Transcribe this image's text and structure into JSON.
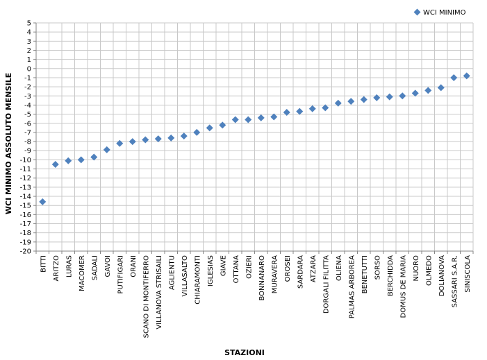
{
  "chart_data": {
    "type": "scatter",
    "xlabel": "STAZIONI",
    "ylabel": "WCI MINIMO ASSOLUTO MENSILE",
    "ylim": [
      -20,
      5
    ],
    "ytick_step": 1,
    "grid": true,
    "legend_position": "top-right",
    "marker_color": "#4F81BD",
    "series": [
      {
        "name": "WCI MINIMO",
        "points": [
          {
            "x": "BITTI",
            "y": -14.6
          },
          {
            "x": "ARITZO",
            "y": -10.5
          },
          {
            "x": "LURAS",
            "y": -10.1
          },
          {
            "x": "MACOMER",
            "y": -10.0
          },
          {
            "x": "SADALI",
            "y": -9.7
          },
          {
            "x": "GAVOI",
            "y": -8.9
          },
          {
            "x": "PUTIFIGARI",
            "y": -8.2
          },
          {
            "x": "ORANI",
            "y": -8.0
          },
          {
            "x": "SCANO DI MONTIFERRO",
            "y": -7.8
          },
          {
            "x": "VILLANOVA STRISAILI",
            "y": -7.7
          },
          {
            "x": "AGLIENTU",
            "y": -7.6
          },
          {
            "x": "VILLASALTO",
            "y": -7.4
          },
          {
            "x": "CHIARAMONTI",
            "y": -7.0
          },
          {
            "x": "IGLESIAS",
            "y": -6.5
          },
          {
            "x": "GIAVE",
            "y": -6.2
          },
          {
            "x": "OTTANA",
            "y": -5.6
          },
          {
            "x": "OZIERI",
            "y": -5.6
          },
          {
            "x": "BONNANARO",
            "y": -5.4
          },
          {
            "x": "MURAVERA",
            "y": -5.3
          },
          {
            "x": "OROSEI",
            "y": -4.8
          },
          {
            "x": "SARDARA",
            "y": -4.7
          },
          {
            "x": "ATZARA",
            "y": -4.4
          },
          {
            "x": "DORGALI FILITTA",
            "y": -4.3
          },
          {
            "x": "OLIENA",
            "y": -3.8
          },
          {
            "x": "PALMAS ARBOREA",
            "y": -3.6
          },
          {
            "x": "BENETUTTI",
            "y": -3.4
          },
          {
            "x": "SORSO",
            "y": -3.2
          },
          {
            "x": "BERCHIDDA",
            "y": -3.1
          },
          {
            "x": "DOMUS DE MARIA",
            "y": -3.0
          },
          {
            "x": "NUORO",
            "y": -2.7
          },
          {
            "x": "OLMEDO",
            "y": -2.4
          },
          {
            "x": "DOLIANOVA",
            "y": -2.1
          },
          {
            "x": "SASSARI S.A.R.",
            "y": -1.0
          },
          {
            "x": "SINISCOLA",
            "y": -0.8
          }
        ]
      }
    ]
  }
}
